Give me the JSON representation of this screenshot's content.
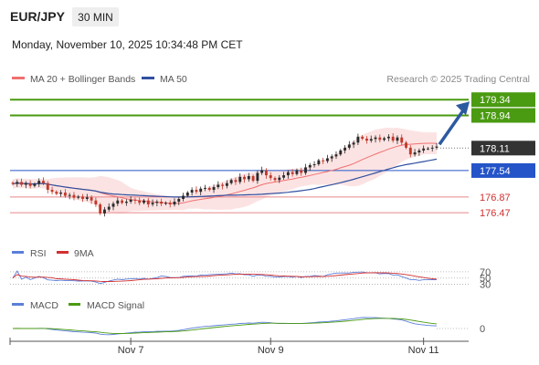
{
  "header": {
    "symbol": "EUR/JPY",
    "timeframe": "30 MIN",
    "datetime": "Monday, November 10, 2025 10:34:48 PM CET"
  },
  "legend": {
    "ma20_label": "MA 20 + Bollinger Bands",
    "ma50_label": "MA 50",
    "credit": "Research © 2025 Trading Central"
  },
  "colors": {
    "green_level": "#4a9a12",
    "blue_level": "#2454c8",
    "red_level": "#e8888a",
    "red_text": "#d32f2f",
    "ma20": "#f07070",
    "ma50": "#3050a0",
    "band_fill": "#fbdada",
    "arrow": "#2c5aa0",
    "candle_up": "#2a2a2a",
    "candle_down": "#c0392b",
    "price_box": "#333333",
    "rsi": "#5b7fd8",
    "rsi_ma": "#d32f2f",
    "macd": "#5b7fd8",
    "macd_signal": "#4a9a12"
  },
  "levels": [
    {
      "value": 179.34,
      "label": "179.34",
      "kind": "resistance",
      "color": "#4a9a12"
    },
    {
      "value": 178.94,
      "label": "178.94",
      "kind": "resistance",
      "color": "#4a9a12"
    },
    {
      "value": 177.54,
      "label": "177.54",
      "kind": "pivot",
      "color": "#2454c8"
    },
    {
      "value": 176.87,
      "label": "176.87",
      "kind": "support",
      "color": "#e8888a"
    },
    {
      "value": 176.47,
      "label": "176.47",
      "kind": "support",
      "color": "#e8888a"
    }
  ],
  "current_price": {
    "value": 178.11,
    "label": "178.11"
  },
  "x_axis": {
    "ticks": [
      {
        "label": "Nov 7",
        "index": 27
      },
      {
        "label": "Nov 9",
        "index": 59
      },
      {
        "label": "Nov 11",
        "index": 94
      }
    ]
  },
  "rsi": {
    "label": "RSI",
    "ma_label": "9MA",
    "levels": [
      {
        "value": 70,
        "label": "70"
      },
      {
        "value": 50,
        "label": "50"
      },
      {
        "value": 30,
        "label": "30"
      }
    ]
  },
  "macd": {
    "label": "MACD",
    "signal_label": "MACD Signal",
    "zero_label": "0"
  },
  "chart_data": {
    "type": "line",
    "description_series": "30-minute EUR/JPY candles (approximate closes)",
    "price_range": [
      175.8,
      179.6
    ],
    "series": [
      {
        "name": "",
        "values": [
          177.2,
          177.25,
          177.18,
          177.22,
          177.15,
          177.2,
          177.28,
          177.22,
          177.05,
          177.0,
          176.95,
          176.98,
          176.9,
          176.92,
          176.85,
          176.88,
          176.82,
          176.86,
          176.78,
          176.68,
          176.45,
          176.55,
          176.62,
          176.7,
          176.78,
          176.72,
          176.75,
          176.8,
          176.78,
          176.72,
          176.78,
          176.68,
          176.72,
          176.75,
          176.7,
          176.72,
          176.68,
          176.75,
          176.82,
          176.9,
          176.98,
          177.05,
          177.0,
          177.08,
          177.1,
          177.05,
          177.12,
          177.18,
          177.15,
          177.22,
          177.3,
          177.25,
          177.38,
          177.32,
          177.4,
          177.28,
          177.48,
          177.55,
          177.42,
          177.35,
          177.3,
          177.36,
          177.42,
          177.5,
          177.45,
          177.55,
          177.48,
          177.62,
          177.68,
          177.7,
          177.8,
          177.78,
          177.85,
          177.9,
          177.95,
          178.05,
          178.12,
          178.2,
          178.25,
          178.4,
          178.35,
          178.3,
          178.34,
          178.38,
          178.32,
          178.36,
          178.4,
          178.3,
          178.38,
          178.25,
          178.12,
          177.95,
          178.0,
          178.05,
          178.1,
          178.1,
          178.12,
          178.15
        ]
      }
    ]
  }
}
